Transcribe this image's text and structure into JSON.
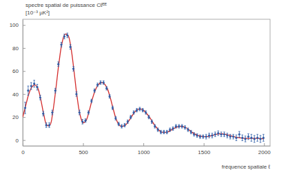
{
  "chart_data": {
    "type": "line",
    "y_label": "spectre spatial de puissance Cℓᴱᴱ",
    "y_unit": "[10⁻³ µK²]",
    "x_label": "fréquence spatiale ℓ",
    "xlim": [
      0,
      2050
    ],
    "ylim": [
      -5,
      105
    ],
    "xticks": [
      0,
      500,
      1000,
      1500,
      2000
    ],
    "yticks": [
      0,
      20,
      40,
      60,
      80,
      100
    ],
    "series": [
      {
        "type": "line",
        "color": "#d42a2a",
        "line_style": "solid",
        "x": [
          0,
          25,
          50,
          75,
          100,
          125,
          150,
          175,
          200,
          225,
          250,
          275,
          300,
          325,
          350,
          375,
          400,
          425,
          450,
          475,
          500,
          525,
          550,
          575,
          600,
          625,
          650,
          675,
          700,
          725,
          750,
          775,
          800,
          825,
          850,
          875,
          900,
          925,
          950,
          975,
          1000,
          1050,
          1100,
          1150,
          1200,
          1250,
          1300,
          1350,
          1400,
          1450,
          1500,
          1550,
          1600,
          1650,
          1700,
          1750,
          1800,
          1850,
          1900,
          1950,
          2000
        ],
        "values": [
          20,
          30,
          40,
          46,
          48,
          45,
          35,
          22,
          13,
          13,
          25,
          45,
          67,
          84,
          92,
          91,
          80,
          60,
          38,
          22,
          15,
          17,
          25,
          35,
          43,
          48,
          50,
          49,
          45,
          37,
          27,
          18,
          13,
          12,
          13,
          16,
          20,
          24,
          26.5,
          27,
          26,
          20,
          12,
          7,
          7,
          10,
          12,
          11,
          7,
          4,
          3,
          3.5,
          5,
          5.5,
          4.5,
          3,
          2,
          1.5,
          1.5,
          1.5,
          1
        ]
      },
      {
        "type": "scatter",
        "color": "#2f5ea8",
        "marker": "circle",
        "x": [
          20,
          45,
          70,
          95,
          120,
          145,
          170,
          195,
          220,
          245,
          270,
          295,
          320,
          345,
          370,
          395,
          420,
          445,
          470,
          495,
          520,
          545,
          570,
          595,
          620,
          645,
          670,
          695,
          720,
          745,
          770,
          795,
          820,
          845,
          870,
          895,
          920,
          945,
          970,
          995,
          1020,
          1045,
          1070,
          1095,
          1120,
          1145,
          1170,
          1195,
          1220,
          1245,
          1270,
          1295,
          1320,
          1345,
          1370,
          1395,
          1420,
          1445,
          1470,
          1495,
          1520,
          1545,
          1570,
          1595,
          1620,
          1645,
          1670,
          1695,
          1720,
          1745,
          1770,
          1795,
          1820,
          1845,
          1870,
          1895,
          1920,
          1945,
          1970,
          1995
        ],
        "values": [
          28,
          43,
          47,
          49,
          46,
          37,
          23,
          13,
          13,
          24,
          43,
          66,
          83,
          90,
          91,
          81,
          62,
          40,
          24,
          16,
          17,
          24,
          34,
          43,
          48,
          50,
          50,
          45,
          38,
          28,
          19,
          14,
          12,
          13,
          16,
          20,
          24,
          26,
          27,
          26,
          24,
          20,
          16,
          12,
          9,
          7,
          7,
          7,
          9,
          10,
          12,
          12,
          12,
          11,
          9,
          7,
          5,
          4,
          3,
          3,
          3,
          4,
          4,
          5,
          6,
          5,
          5,
          4,
          3,
          3,
          2,
          5,
          2,
          1,
          3,
          2,
          1,
          2,
          1,
          2
        ],
        "errors": [
          5,
          4,
          3,
          3,
          2.5,
          2,
          2,
          2,
          2,
          2,
          2,
          2,
          2,
          2,
          2,
          2,
          2,
          2,
          2,
          2,
          1.5,
          1.5,
          1.5,
          1.5,
          1.5,
          1.5,
          1.5,
          1.5,
          1.5,
          1.5,
          1.5,
          1.5,
          1.5,
          1.5,
          1.5,
          1.5,
          1.5,
          1.5,
          1.5,
          1.5,
          1.5,
          1.5,
          1.5,
          1.5,
          1.5,
          1.5,
          1.5,
          1.5,
          1.5,
          1.5,
          1.5,
          1.5,
          1.5,
          1.5,
          1.5,
          1.5,
          1.5,
          1.5,
          1.5,
          1.5,
          2,
          2,
          2,
          2,
          2,
          2,
          2,
          2,
          2,
          2,
          2.5,
          2.5,
          2.5,
          2.5,
          2.5,
          3,
          3,
          3,
          3,
          3
        ]
      }
    ]
  }
}
